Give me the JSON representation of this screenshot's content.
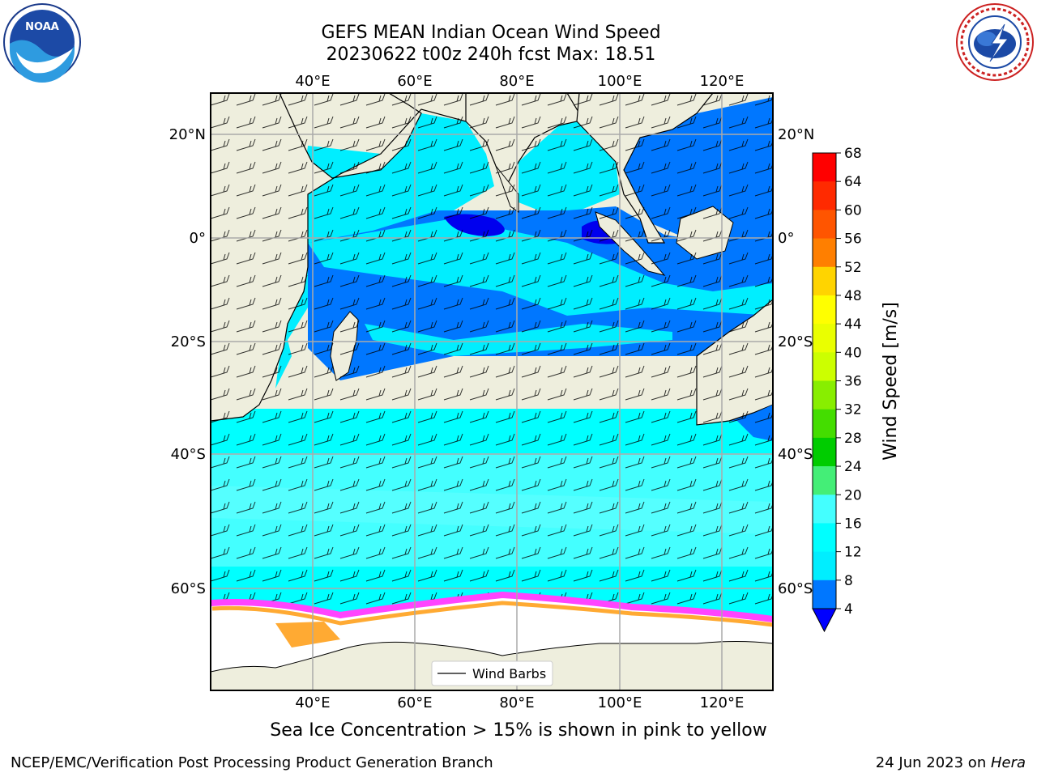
{
  "title": {
    "line1": "GEFS MEAN Indian Ocean Wind Speed",
    "line2": "20230622 t00z 240h fcst   Max: 18.51"
  },
  "axes": {
    "lon_ticks": [
      "40°E",
      "60°E",
      "80°E",
      "100°E",
      "120°E"
    ],
    "lat_ticks_left": [
      "20°N",
      "0°",
      "20°S",
      "40°S",
      "60°S"
    ],
    "lat_ticks_right": [
      "20°N",
      "0°",
      "20°S",
      "40°S",
      "60°S"
    ]
  },
  "colorbar": {
    "label": "Wind Speed [m/s]",
    "ticks": [
      "68",
      "64",
      "60",
      "56",
      "52",
      "48",
      "44",
      "40",
      "36",
      "32",
      "28",
      "24",
      "20",
      "16",
      "12",
      "8",
      "4"
    ],
    "colors": [
      "#ff0000",
      "#ff2a00",
      "#ff5500",
      "#ff7f00",
      "#ffaa00",
      "#ffd400",
      "#ffff00",
      "#eaff00",
      "#ccff00",
      "#88ee00",
      "#44dd00",
      "#00cc00",
      "#44ee77",
      "#99ffff",
      "#44ffff",
      "#00ffff",
      "#00eeff",
      "#0077ff"
    ],
    "under_color": "#0000ff"
  },
  "legend": {
    "label": "Wind Barbs"
  },
  "caption": "Sea Ice Concentration > 15% is shown in pink to yellow",
  "footer": {
    "left": "NCEP/EMC/Verification Post Processing Product Generation Branch",
    "date": "24 Jun 2023 on ",
    "host": "Hera"
  },
  "logos": {
    "noaa_text": "NOAA",
    "nws_ring_text": "NATIONAL WEATHER SERVICE"
  },
  "colors": {
    "land": "#eeeedd",
    "ocean_low": "#0077ff",
    "ocean_mid": "#00ffff",
    "ocean_high": "#44ffff",
    "ocean_deep": "#0000ee",
    "sea_ice_pink": "#ff44ff",
    "sea_ice_orange": "#ffaa33",
    "ice_shelf": "#ffffff"
  }
}
